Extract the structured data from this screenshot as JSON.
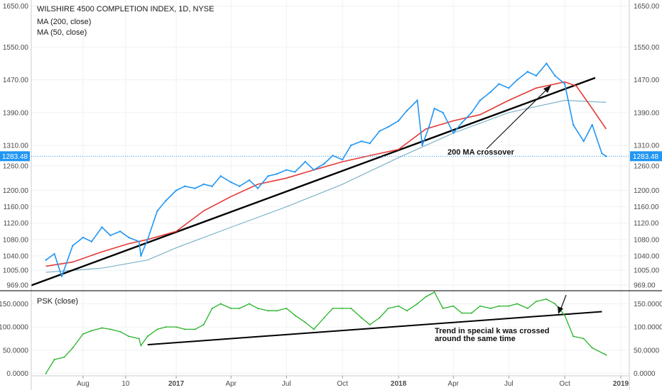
{
  "legend": {
    "title": "WILSHIRE 4500 COMPLETION INDEX, 1D, NYSE",
    "ma200": "MA (200, close)",
    "ma50": "MA (50, close)",
    "psk": "PSK (close)"
  },
  "annotations": {
    "ma_crossover": "200 MA crossover",
    "special_k_line1": "Trend in special k was crossed",
    "special_k_line2": "around the same time"
  },
  "colors": {
    "price": "#2196f3",
    "ma50": "#e53935",
    "ma200": "#7fb3c8",
    "psk": "#27b327",
    "trend": "#000000",
    "last_price_tag": "#2196f3",
    "grid": "#eef1f4"
  },
  "chart_data": [
    {
      "type": "line",
      "title": "WILSHIRE 4500 COMPLETION INDEX, 1D, NYSE",
      "y_axis_labels": [
        "1650.00",
        "1550.00",
        "1470.00",
        "1390.00",
        "1310.00",
        "1260.00",
        "1200.00",
        "1160.00",
        "1120.00",
        "1080.00",
        "1040.00",
        "1005.00",
        "969.00"
      ],
      "last_price_label": "1283.48",
      "last_price": 1283.48,
      "x_tick_labels": [
        "Aug",
        "10",
        "2017",
        "Apr",
        "Jul",
        "Oct",
        "2018",
        "Apr",
        "Jul",
        "Oct",
        "2019"
      ],
      "ylim": [
        955,
        1665
      ],
      "grid": true,
      "series": [
        {
          "name": "WILSHIRE 4500 COMPLETION INDEX",
          "x": [
            "2016-06-01",
            "2016-06-15",
            "2016-06-27",
            "2016-07-15",
            "2016-08-01",
            "2016-08-15",
            "2016-09-01",
            "2016-09-15",
            "2016-10-01",
            "2016-10-15",
            "2016-11-01",
            "2016-11-04",
            "2016-11-15",
            "2016-12-01",
            "2016-12-15",
            "2017-01-01",
            "2017-01-15",
            "2017-02-01",
            "2017-02-15",
            "2017-03-01",
            "2017-03-15",
            "2017-04-01",
            "2017-04-15",
            "2017-05-01",
            "2017-05-15",
            "2017-06-01",
            "2017-06-15",
            "2017-07-01",
            "2017-07-15",
            "2017-08-01",
            "2017-08-15",
            "2017-09-01",
            "2017-09-15",
            "2017-10-01",
            "2017-10-15",
            "2017-11-01",
            "2017-11-15",
            "2017-12-01",
            "2017-12-15",
            "2018-01-01",
            "2018-01-15",
            "2018-02-01",
            "2018-02-09",
            "2018-02-20",
            "2018-03-01",
            "2018-03-15",
            "2018-04-01",
            "2018-04-15",
            "2018-05-01",
            "2018-05-15",
            "2018-06-01",
            "2018-06-15",
            "2018-07-01",
            "2018-07-15",
            "2018-08-01",
            "2018-08-15",
            "2018-09-01",
            "2018-09-15",
            "2018-10-01",
            "2018-10-15",
            "2018-11-01",
            "2018-11-15",
            "2018-12-01",
            "2018-12-08"
          ],
          "values": [
            1030,
            1045,
            990,
            1065,
            1085,
            1075,
            1110,
            1090,
            1100,
            1085,
            1075,
            1040,
            1080,
            1150,
            1175,
            1200,
            1210,
            1205,
            1215,
            1210,
            1235,
            1220,
            1210,
            1225,
            1205,
            1235,
            1240,
            1250,
            1245,
            1270,
            1250,
            1265,
            1285,
            1275,
            1310,
            1320,
            1315,
            1345,
            1355,
            1370,
            1395,
            1420,
            1310,
            1355,
            1400,
            1390,
            1340,
            1365,
            1390,
            1420,
            1440,
            1460,
            1450,
            1470,
            1490,
            1480,
            1510,
            1480,
            1460,
            1360,
            1320,
            1360,
            1290,
            1283.48
          ]
        },
        {
          "name": "MA (50, close)",
          "x": [
            "2016-06-01",
            "2016-07-15",
            "2016-09-01",
            "2016-10-15",
            "2016-11-15",
            "2017-01-01",
            "2017-02-15",
            "2017-04-01",
            "2017-05-15",
            "2017-07-01",
            "2017-08-15",
            "2017-10-01",
            "2017-11-15",
            "2018-01-01",
            "2018-02-15",
            "2018-04-01",
            "2018-05-15",
            "2018-07-01",
            "2018-08-15",
            "2018-10-01",
            "2018-10-20",
            "2018-11-15",
            "2018-12-08"
          ],
          "values": [
            1015,
            1025,
            1050,
            1070,
            1080,
            1100,
            1150,
            1185,
            1215,
            1230,
            1250,
            1270,
            1285,
            1300,
            1350,
            1370,
            1385,
            1420,
            1450,
            1465,
            1455,
            1400,
            1350
          ]
        },
        {
          "name": "MA (200, close)",
          "x": [
            "2016-06-01",
            "2016-09-01",
            "2016-11-15",
            "2017-01-01",
            "2017-04-01",
            "2017-07-01",
            "2017-10-01",
            "2018-01-01",
            "2018-04-01",
            "2018-07-01",
            "2018-10-01",
            "2018-12-08"
          ],
          "values": [
            1000,
            1010,
            1030,
            1060,
            1110,
            1160,
            1215,
            1280,
            1340,
            1390,
            1420,
            1415
          ]
        }
      ]
    },
    {
      "type": "line",
      "title": "PSK (close)",
      "y_axis_labels": [
        "150.0000",
        "100.0000",
        "50.0000",
        "0.0000"
      ],
      "ylim": [
        -5,
        178
      ],
      "grid": true,
      "series": [
        {
          "name": "PSK (close)",
          "x": [
            "2016-06-01",
            "2016-06-15",
            "2016-07-01",
            "2016-07-15",
            "2016-08-01",
            "2016-08-15",
            "2016-09-01",
            "2016-09-15",
            "2016-10-01",
            "2016-10-15",
            "2016-11-01",
            "2016-11-04",
            "2016-11-15",
            "2016-12-01",
            "2016-12-15",
            "2017-01-01",
            "2017-01-15",
            "2017-02-01",
            "2017-02-15",
            "2017-03-01",
            "2017-03-15",
            "2017-04-01",
            "2017-04-15",
            "2017-05-01",
            "2017-05-15",
            "2017-06-01",
            "2017-06-15",
            "2017-07-01",
            "2017-07-15",
            "2017-08-01",
            "2017-08-15",
            "2017-09-01",
            "2017-09-15",
            "2017-10-01",
            "2017-10-15",
            "2017-11-01",
            "2017-11-15",
            "2017-12-01",
            "2017-12-15",
            "2018-01-01",
            "2018-01-15",
            "2018-02-01",
            "2018-02-15",
            "2018-03-01",
            "2018-03-15",
            "2018-04-01",
            "2018-04-15",
            "2018-05-01",
            "2018-05-15",
            "2018-06-01",
            "2018-06-15",
            "2018-07-01",
            "2018-07-15",
            "2018-08-01",
            "2018-08-15",
            "2018-09-01",
            "2018-09-15",
            "2018-10-01",
            "2018-10-15",
            "2018-11-01",
            "2018-11-15",
            "2018-12-08"
          ],
          "values": [
            0,
            30,
            35,
            55,
            85,
            92,
            98,
            95,
            90,
            80,
            75,
            60,
            80,
            95,
            100,
            100,
            95,
            95,
            105,
            140,
            150,
            140,
            140,
            150,
            140,
            135,
            135,
            140,
            125,
            110,
            95,
            120,
            140,
            140,
            140,
            120,
            105,
            120,
            140,
            145,
            135,
            150,
            165,
            175,
            140,
            145,
            130,
            130,
            145,
            140,
            145,
            145,
            150,
            140,
            155,
            160,
            150,
            125,
            80,
            75,
            55,
            40
          ]
        },
        {
          "name": "Trend in special k",
          "x": [
            "2016-11-15",
            "2018-12-01"
          ],
          "values": [
            62,
            133
          ]
        }
      ]
    }
  ]
}
